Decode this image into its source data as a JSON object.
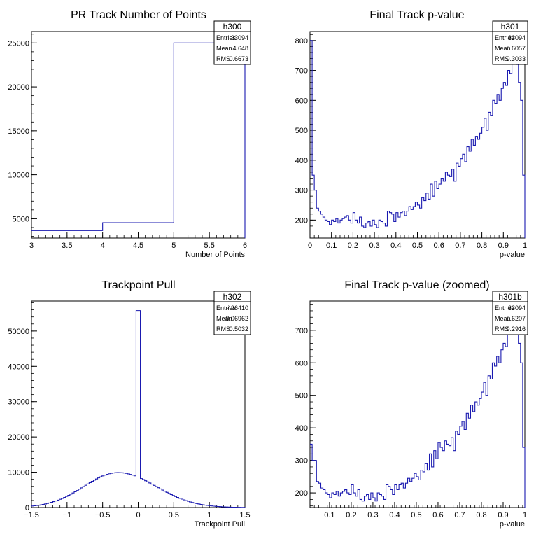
{
  "chart_data": [
    {
      "type": "histogram",
      "title": "PR Track Number of Points",
      "xlabel": "Number of Points",
      "ylabel": "",
      "xlim": [
        3,
        6
      ],
      "ylim": [
        2800,
        26300
      ],
      "xticks": [
        "3",
        "3.5",
        "4",
        "4.5",
        "5",
        "5.5",
        "6"
      ],
      "xtick_values": [
        3,
        3.5,
        4,
        4.5,
        5,
        5.5,
        6
      ],
      "yticks": [
        "5000",
        "10000",
        "15000",
        "20000",
        "25000"
      ],
      "ytick_values": [
        5000,
        10000,
        15000,
        20000,
        25000
      ],
      "bin_edges": [
        3,
        4,
        5,
        6
      ],
      "values": [
        3650,
        4550,
        25000
      ],
      "stats": {
        "name": "h300",
        "rows": [
          [
            "Entries",
            "33094"
          ],
          [
            "Mean",
            "4.648"
          ],
          [
            "RMS",
            "0.6673"
          ]
        ]
      }
    },
    {
      "type": "histogram",
      "title": "Final Track p-value",
      "xlabel": "p-value",
      "ylabel": "",
      "xlim": [
        0,
        1
      ],
      "ylim": [
        140,
        830
      ],
      "xticks": [
        "0",
        "0.1",
        "0.2",
        "0.3",
        "0.4",
        "0.5",
        "0.6",
        "0.7",
        "0.8",
        "0.9",
        "1"
      ],
      "xtick_values": [
        0,
        0.1,
        0.2,
        0.3,
        0.4,
        0.5,
        0.6,
        0.7,
        0.8,
        0.9,
        1
      ],
      "yticks": [
        "200",
        "300",
        "400",
        "500",
        "600",
        "700",
        "800"
      ],
      "ytick_values": [
        200,
        300,
        400,
        500,
        600,
        700,
        800
      ],
      "bin_edges_range": [
        0,
        1
      ],
      "values": [
        800,
        350,
        300,
        240,
        230,
        220,
        210,
        200,
        195,
        185,
        200,
        195,
        205,
        190,
        200,
        205,
        210,
        215,
        200,
        190,
        225,
        200,
        190,
        210,
        180,
        175,
        190,
        195,
        180,
        200,
        185,
        175,
        200,
        195,
        190,
        180,
        230,
        225,
        220,
        195,
        225,
        210,
        225,
        230,
        215,
        230,
        245,
        235,
        245,
        260,
        250,
        240,
        275,
        265,
        290,
        270,
        320,
        280,
        330,
        305,
        320,
        340,
        330,
        360,
        350,
        345,
        370,
        330,
        390,
        380,
        405,
        420,
        395,
        445,
        430,
        470,
        450,
        480,
        470,
        490,
        510,
        540,
        500,
        560,
        550,
        600,
        590,
        620,
        600,
        640,
        660,
        650,
        700,
        690,
        740,
        730,
        720,
        660,
        600,
        350
      ]
    },
    {
      "type": "histogram",
      "title": "Trackpoint Pull",
      "xlabel": "Trackpoint Pull",
      "ylabel": "",
      "xlim": [
        -1.5,
        1.5
      ],
      "ylim": [
        0,
        58500
      ],
      "xticks": [
        "−1.5",
        "−1",
        "−0.5",
        "0",
        "0.5",
        "1",
        "1.5"
      ],
      "xtick_values": [
        -1.5,
        -1,
        -0.5,
        0,
        0.5,
        1,
        1.5
      ],
      "yticks": [
        "0",
        "10000",
        "20000",
        "30000",
        "40000",
        "50000"
      ],
      "ytick_values": [
        0,
        10000,
        20000,
        30000,
        40000,
        50000
      ],
      "curve": {
        "bins": 100,
        "peak_x": -0.28,
        "peak_y": 9900,
        "sigma_left": 0.48,
        "sigma_right": 0.53,
        "base": 0,
        "spike_x": 0.0,
        "spike_y": 55800
      },
      "stats": {
        "name": "h302",
        "rows": [
          [
            "Entries",
            "496410"
          ],
          [
            "Mean",
            "−0.06962"
          ],
          [
            "RMS",
            "0.5032"
          ]
        ]
      }
    },
    {
      "type": "histogram",
      "title": "Final Track p-value (zoomed)",
      "xlabel": "p-value",
      "ylabel": "",
      "xlim": [
        0.01,
        1
      ],
      "ylim": [
        155,
        790
      ],
      "xticks": [
        "0.1",
        "0.2",
        "0.3",
        "0.4",
        "0.5",
        "0.6",
        "0.7",
        "0.8",
        "0.9",
        "1"
      ],
      "xtick_values": [
        0.1,
        0.2,
        0.3,
        0.4,
        0.5,
        0.6,
        0.7,
        0.8,
        0.9,
        1
      ],
      "yticks": [
        "200",
        "300",
        "400",
        "500",
        "600",
        "700"
      ],
      "ytick_values": [
        200,
        300,
        400,
        500,
        600,
        700
      ],
      "bin_edges_range": [
        0.01,
        1
      ],
      "values": [
        350,
        300,
        300,
        235,
        230,
        215,
        210,
        200,
        195,
        185,
        200,
        195,
        205,
        190,
        200,
        205,
        210,
        200,
        195,
        225,
        200,
        190,
        210,
        180,
        175,
        190,
        195,
        180,
        200,
        185,
        175,
        200,
        195,
        190,
        180,
        225,
        220,
        210,
        195,
        225,
        210,
        225,
        230,
        215,
        230,
        245,
        235,
        245,
        260,
        250,
        240,
        270,
        265,
        290,
        270,
        320,
        280,
        330,
        305,
        355,
        340,
        330,
        360,
        350,
        345,
        370,
        330,
        390,
        380,
        405,
        420,
        395,
        445,
        430,
        470,
        450,
        480,
        470,
        490,
        510,
        540,
        500,
        560,
        550,
        600,
        590,
        620,
        600,
        640,
        660,
        650,
        700,
        690,
        740,
        730,
        720,
        660,
        600,
        340
      ]
    }
  ],
  "stat_boxes": [
    {
      "name": "h300",
      "entries_label": "Entries",
      "entries": "33094",
      "mean_label": "Mean",
      "mean": "4.648",
      "rms_label": "RMS",
      "rms": "0.6673"
    },
    {
      "name": "h301",
      "entries_label": "Entries",
      "entries": "33094",
      "mean_label": "Mean",
      "mean": "0.6057",
      "rms_label": "RMS",
      "rms": "0.3033"
    },
    {
      "name": "h302",
      "entries_label": "Entries",
      "entries": "496410",
      "mean_label": "Mean",
      "mean": "−0.06962",
      "rms_label": "RMS",
      "rms": "0.5032"
    },
    {
      "name": "h301b",
      "entries_label": "Entries",
      "entries": "33094",
      "mean_label": "Mean",
      "mean": "0.6207",
      "rms_label": "RMS",
      "rms": "0.2916"
    }
  ],
  "colors": {
    "line": "#1a1ab0",
    "axis": "#000000",
    "background": "#ffffff"
  }
}
